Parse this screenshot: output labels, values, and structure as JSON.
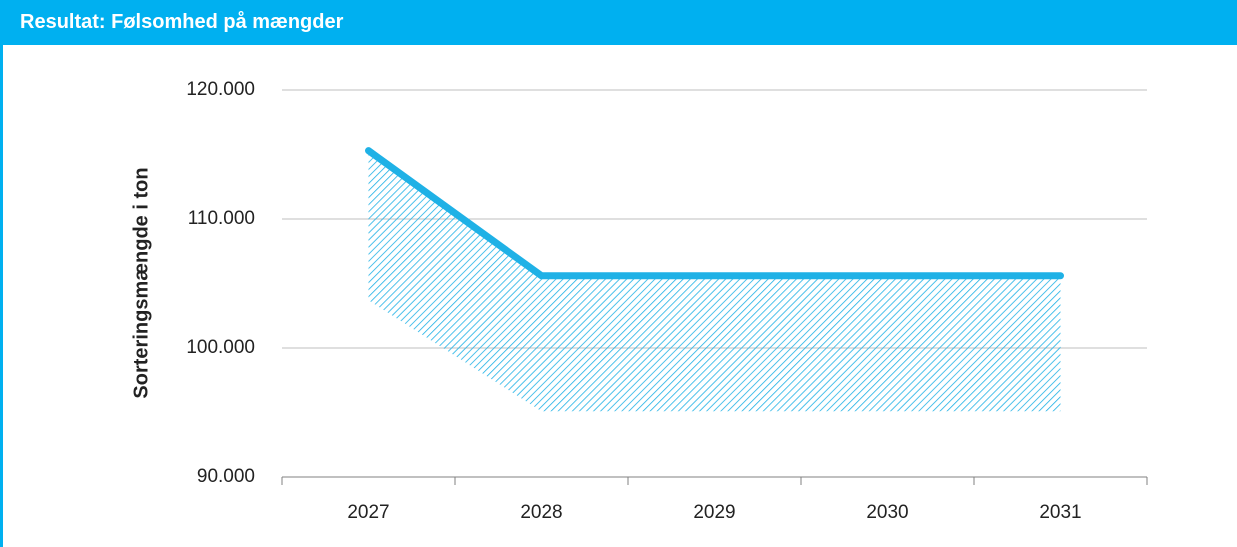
{
  "header": {
    "title": "Resultat: Følsomhed på mængder"
  },
  "chart_data": {
    "type": "line",
    "ylabel": "Sorteringsmængde i ton",
    "categories": [
      "2027",
      "2028",
      "2029",
      "2030",
      "2031"
    ],
    "series": [
      {
        "color": "#1fb1e6",
        "values": [
          115300,
          105600,
          105600,
          105600,
          105600
        ]
      }
    ],
    "band": {
      "color": "#1fb1e6",
      "lower": [
        103700,
        95100,
        95100,
        95100,
        95100
      ]
    },
    "ylim": [
      90000,
      120000
    ],
    "yticks": [
      {
        "value": 90000,
        "label": "90.000"
      },
      {
        "value": 100000,
        "label": "100.000"
      },
      {
        "value": 110000,
        "label": "110.000"
      },
      {
        "value": 120000,
        "label": "120.000"
      }
    ],
    "grid": true
  }
}
